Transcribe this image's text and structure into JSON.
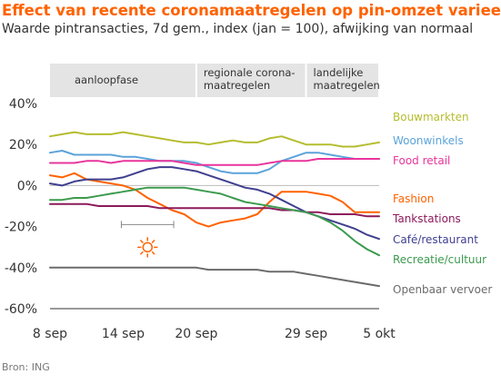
{
  "header": {
    "title": "Effect van recente coronamaatregelen op pin-omzet varieert",
    "subtitle": "Waarde pintransacties, 7d gem., index (jan = 100), afwijking van normaal"
  },
  "source": "Bron: ING",
  "chart_data": {
    "type": "line",
    "x": [
      "8 sep",
      "9 sep",
      "10 sep",
      "11 sep",
      "12 sep",
      "13 sep",
      "14 sep",
      "15 sep",
      "16 sep",
      "17 sep",
      "18 sep",
      "19 sep",
      "20 sep",
      "21 sep",
      "22 sep",
      "23 sep",
      "24 sep",
      "25 sep",
      "26 sep",
      "27 sep",
      "28 sep",
      "29 sep",
      "30 sep",
      "1 okt",
      "2 okt",
      "3 okt",
      "4 okt",
      "5 okt"
    ],
    "x_tick_labels": [
      "8 sep",
      "14 sep",
      "20 sep",
      "29 sep",
      "5 okt"
    ],
    "y_tick_labels": [
      "40%",
      "20%",
      "0%",
      "-20%",
      "-40%",
      "-60%"
    ],
    "y_ticks": [
      40,
      20,
      0,
      -20,
      -40,
      -60
    ],
    "ylim": [
      -60,
      40
    ],
    "grid": false,
    "legend_position": "right",
    "phases": [
      {
        "label": [
          "aanloopfase"
        ],
        "from": "8 sep",
        "to": "20 sep"
      },
      {
        "label": [
          "regionale corona-",
          "maatregelen"
        ],
        "from": "20 sep",
        "to": "29 sep"
      },
      {
        "label": [
          "landelijke",
          "maatregelen"
        ],
        "from": "29 sep",
        "to": "5 okt"
      }
    ],
    "annotation": {
      "type": "sun-icon",
      "range_from": "14 sep",
      "range_to": "18 sep",
      "y": -19
    },
    "series": [
      {
        "name": "Bouwmarkten",
        "color": "#B5BD2E",
        "values": [
          24,
          25,
          26,
          25,
          25,
          25,
          26,
          25,
          24,
          23,
          22,
          21,
          21,
          20,
          21,
          22,
          21,
          21,
          23,
          24,
          22,
          20,
          20,
          20,
          19,
          19,
          20,
          21
        ]
      },
      {
        "name": "Woonwinkels",
        "color": "#5BA3D9",
        "values": [
          16,
          17,
          15,
          15,
          15,
          15,
          14,
          14,
          13,
          12,
          12,
          12,
          11,
          9,
          7,
          6,
          6,
          6,
          8,
          12,
          14,
          16,
          16,
          15,
          14,
          13,
          13,
          13
        ]
      },
      {
        "name": "Food retail",
        "color": "#E8359C",
        "values": [
          11,
          11,
          11,
          12,
          12,
          11,
          12,
          12,
          12,
          12,
          12,
          11,
          10,
          10,
          10,
          10,
          10,
          10,
          11,
          12,
          12,
          12,
          13,
          13,
          13,
          13,
          13,
          13
        ]
      },
      {
        "name": "Fashion",
        "color": "#FF6200",
        "values": [
          5,
          4,
          6,
          3,
          2,
          1,
          0,
          -2,
          -6,
          -9,
          -12,
          -14,
          -18,
          -20,
          -18,
          -17,
          -16,
          -14,
          -8,
          -3,
          -3,
          -3,
          -4,
          -5,
          -8,
          -13,
          -13,
          -13
        ]
      },
      {
        "name": "Tankstations",
        "color": "#8C1A5B",
        "values": [
          -9,
          -9,
          -9,
          -9,
          -10,
          -10,
          -10,
          -10,
          -10,
          -11,
          -11,
          -11,
          -11,
          -11,
          -11,
          -11,
          -11,
          -11,
          -11,
          -12,
          -12,
          -13,
          -13,
          -14,
          -14,
          -14,
          -15,
          -15
        ]
      },
      {
        "name": "Café/restaurant",
        "color": "#3F3F8F",
        "values": [
          1,
          0,
          2,
          3,
          3,
          3,
          4,
          6,
          8,
          9,
          9,
          8,
          7,
          5,
          3,
          1,
          -1,
          -2,
          -4,
          -7,
          -10,
          -13,
          -15,
          -17,
          -19,
          -21,
          -24,
          -26
        ]
      },
      {
        "name": "Recreatie/cultuur",
        "color": "#3C9A4F",
        "values": [
          -7,
          -7,
          -6,
          -6,
          -5,
          -4,
          -3,
          -2,
          -1,
          -1,
          -1,
          -1,
          -2,
          -3,
          -4,
          -6,
          -8,
          -9,
          -10,
          -11,
          -12,
          -13,
          -15,
          -18,
          -22,
          -27,
          -31,
          -34
        ]
      },
      {
        "name": "Openbaar vervoer",
        "color": "#6B6B6B",
        "values": [
          -40,
          -40,
          -40,
          -40,
          -40,
          -40,
          -40,
          -40,
          -40,
          -40,
          -40,
          -40,
          -40,
          -41,
          -41,
          -41,
          -41,
          -41,
          -42,
          -42,
          -42,
          -43,
          -44,
          -45,
          -46,
          -47,
          -48,
          -49
        ]
      }
    ]
  }
}
